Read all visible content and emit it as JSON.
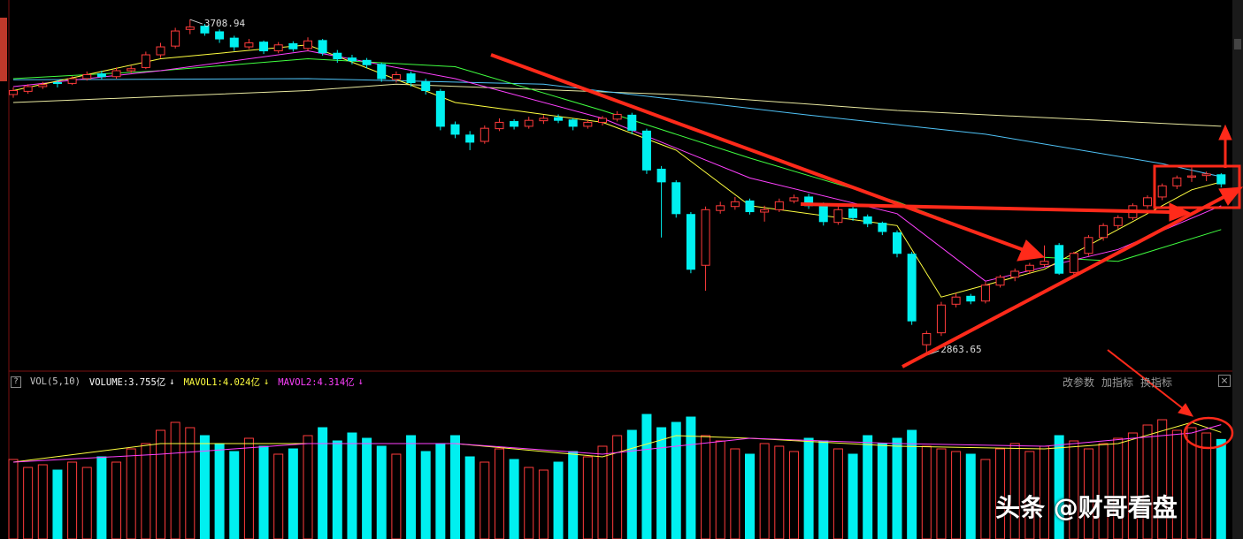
{
  "chart_data": [
    {
      "type": "candlestick",
      "up_color": "#ff3b3b",
      "down_color": "#00f0f0",
      "ylim": [
        2828,
        3758
      ],
      "candles": [
        [
          3520,
          3538,
          3512,
          3530
        ],
        [
          3528,
          3546,
          3522,
          3540
        ],
        [
          3540,
          3552,
          3534,
          3545
        ],
        [
          3550,
          3556,
          3538,
          3548
        ],
        [
          3548,
          3566,
          3544,
          3560
        ],
        [
          3560,
          3578,
          3555,
          3570
        ],
        [
          3572,
          3580,
          3558,
          3565
        ],
        [
          3565,
          3588,
          3560,
          3580
        ],
        [
          3580,
          3592,
          3574,
          3585
        ],
        [
          3588,
          3628,
          3584,
          3620
        ],
        [
          3620,
          3650,
          3612,
          3640
        ],
        [
          3642,
          3688,
          3636,
          3680
        ],
        [
          3684,
          3708.94,
          3672,
          3690
        ],
        [
          3692,
          3698,
          3668,
          3675
        ],
        [
          3678,
          3684,
          3650,
          3660
        ],
        [
          3662,
          3668,
          3630,
          3640
        ],
        [
          3640,
          3660,
          3634,
          3650
        ],
        [
          3652,
          3656,
          3622,
          3630
        ],
        [
          3630,
          3652,
          3624,
          3645
        ],
        [
          3648,
          3654,
          3628,
          3635
        ],
        [
          3636,
          3664,
          3630,
          3655
        ],
        [
          3656,
          3660,
          3618,
          3625
        ],
        [
          3624,
          3632,
          3600,
          3610
        ],
        [
          3612,
          3620,
          3596,
          3605
        ],
        [
          3606,
          3612,
          3586,
          3595
        ],
        [
          3596,
          3600,
          3552,
          3560
        ],
        [
          3558,
          3578,
          3550,
          3570
        ],
        [
          3572,
          3578,
          3540,
          3550
        ],
        [
          3552,
          3560,
          3520,
          3530
        ],
        [
          3528,
          3534,
          3430,
          3440
        ],
        [
          3444,
          3452,
          3410,
          3420
        ],
        [
          3418,
          3428,
          3380,
          3400
        ],
        [
          3402,
          3442,
          3396,
          3435
        ],
        [
          3434,
          3460,
          3428,
          3450
        ],
        [
          3452,
          3458,
          3432,
          3440
        ],
        [
          3440,
          3464,
          3434,
          3455
        ],
        [
          3454,
          3468,
          3446,
          3460
        ],
        [
          3462,
          3470,
          3448,
          3455
        ],
        [
          3456,
          3460,
          3430,
          3440
        ],
        [
          3440,
          3458,
          3434,
          3450
        ],
        [
          3450,
          3466,
          3442,
          3460
        ],
        [
          3458,
          3478,
          3452,
          3470
        ],
        [
          3468,
          3474,
          3420,
          3430
        ],
        [
          3428,
          3434,
          3320,
          3330
        ],
        [
          3332,
          3340,
          3160,
          3300
        ],
        [
          3298,
          3304,
          3210,
          3220
        ],
        [
          3218,
          3224,
          3070,
          3080
        ],
        [
          3090,
          3238,
          3026,
          3230
        ],
        [
          3228,
          3250,
          3220,
          3240
        ],
        [
          3238,
          3262,
          3230,
          3250
        ],
        [
          3252,
          3258,
          3218,
          3225
        ],
        [
          3224,
          3240,
          3200,
          3230
        ],
        [
          3230,
          3258,
          3224,
          3250
        ],
        [
          3252,
          3268,
          3246,
          3260
        ],
        [
          3262,
          3270,
          3232,
          3240
        ],
        [
          3242,
          3248,
          3190,
          3200
        ],
        [
          3198,
          3238,
          3192,
          3230
        ],
        [
          3232,
          3238,
          3202,
          3210
        ],
        [
          3212,
          3218,
          3186,
          3195
        ],
        [
          3196,
          3200,
          3166,
          3175
        ],
        [
          3172,
          3178,
          3110,
          3120
        ],
        [
          3118,
          3124,
          2940,
          2950
        ],
        [
          2890,
          2925,
          2863.65,
          2918
        ],
        [
          2920,
          2998,
          2912,
          2990
        ],
        [
          2992,
          3020,
          2984,
          3010
        ],
        [
          3012,
          3018,
          2992,
          3000
        ],
        [
          3000,
          3048,
          2994,
          3040
        ],
        [
          3040,
          3066,
          3034,
          3060
        ],
        [
          3060,
          3082,
          3050,
          3075
        ],
        [
          3076,
          3096,
          3068,
          3090
        ],
        [
          3092,
          3140,
          3086,
          3100
        ],
        [
          3140,
          3146,
          3066,
          3070
        ],
        [
          3072,
          3124,
          3066,
          3120
        ],
        [
          3120,
          3166,
          3114,
          3160
        ],
        [
          3160,
          3196,
          3152,
          3190
        ],
        [
          3190,
          3216,
          3182,
          3210
        ],
        [
          3210,
          3246,
          3204,
          3240
        ],
        [
          3240,
          3266,
          3232,
          3260
        ],
        [
          3262,
          3296,
          3254,
          3290
        ],
        [
          3290,
          3316,
          3282,
          3310
        ],
        [
          3312,
          3336,
          3300,
          3315
        ],
        [
          3316,
          3326,
          3302,
          3320
        ],
        [
          3318,
          3322,
          3286,
          3295
        ]
      ],
      "lines": [
        {
          "color": "#e8e8a0",
          "x": [
            0,
            20,
            26,
            45,
            60,
            82
          ],
          "values": [
            3500,
            3530,
            3546,
            3520,
            3480,
            3440
          ]
        },
        {
          "color": "#4fc3f7",
          "x": [
            0,
            20,
            36,
            54,
            66,
            78,
            82
          ],
          "values": [
            3557,
            3560,
            3546,
            3468,
            3420,
            3346,
            3313
          ]
        },
        {
          "color": "#40ff40",
          "x": [
            0,
            10,
            20,
            30,
            40,
            50,
            60,
            70,
            75,
            82
          ],
          "values": [
            3560,
            3580,
            3610,
            3590,
            3480,
            3360,
            3250,
            3110,
            3100,
            3180
          ]
        },
        {
          "color": "#ff40ff",
          "x": [
            0,
            10,
            20,
            30,
            40,
            50,
            60,
            66,
            75,
            82
          ],
          "values": [
            3540,
            3580,
            3630,
            3560,
            3460,
            3310,
            3220,
            3050,
            3130,
            3240
          ]
        },
        {
          "color": "#ffff40",
          "x": [
            0,
            10,
            20,
            30,
            40,
            45,
            50,
            60,
            63,
            70,
            80,
            82
          ],
          "values": [
            3530,
            3610,
            3645,
            3500,
            3450,
            3380,
            3240,
            3190,
            3010,
            3080,
            3280,
            3300
          ]
        }
      ]
    },
    {
      "type": "bar",
      "ylim": [
        0,
        5.5
      ],
      "values": [
        3.0,
        2.7,
        2.8,
        2.6,
        2.9,
        2.7,
        3.1,
        2.9,
        3.4,
        3.6,
        4.1,
        4.4,
        4.2,
        3.9,
        3.6,
        3.3,
        3.8,
        3.5,
        3.2,
        3.4,
        3.9,
        4.2,
        3.7,
        4.0,
        3.8,
        3.5,
        3.2,
        3.9,
        3.3,
        3.6,
        3.9,
        3.1,
        2.9,
        3.4,
        3.0,
        2.7,
        2.6,
        2.9,
        3.3,
        3.1,
        3.5,
        3.9,
        4.1,
        4.7,
        4.2,
        4.4,
        4.6,
        3.9,
        3.7,
        3.4,
        3.2,
        3.6,
        3.5,
        3.3,
        3.8,
        3.7,
        3.4,
        3.2,
        3.9,
        3.6,
        3.8,
        4.1,
        3.5,
        3.4,
        3.3,
        3.2,
        3.0,
        3.4,
        3.6,
        3.3,
        3.5,
        3.9,
        3.7,
        3.4,
        3.6,
        3.8,
        4.0,
        4.3,
        4.5,
        4.1,
        4.2,
        4.0,
        3.755
      ],
      "lines": [
        {
          "color": "#ffff40",
          "x": [
            0,
            10,
            20,
            30,
            40,
            45,
            50,
            60,
            70,
            75,
            80,
            82
          ],
          "values": [
            2.9,
            3.6,
            3.6,
            3.6,
            3.1,
            3.9,
            3.8,
            3.5,
            3.4,
            3.6,
            4.4,
            4.024
          ]
        },
        {
          "color": "#ff40ff",
          "x": [
            0,
            10,
            20,
            30,
            40,
            50,
            60,
            70,
            80,
            82
          ],
          "values": [
            2.9,
            3.2,
            3.6,
            3.6,
            3.2,
            3.8,
            3.6,
            3.5,
            4.0,
            4.314
          ]
        }
      ]
    }
  ],
  "volume_header": {
    "help": "?",
    "indicator": "VOL(5,10)",
    "items": [
      {
        "text": "VOLUME:3.755亿",
        "arrow": "↓",
        "color": "#ffffff"
      },
      {
        "text": "MAVOL1:4.024亿",
        "arrow": "↓",
        "color": "#ffff40"
      },
      {
        "text": "MAVOL2:4.314亿",
        "arrow": "↓",
        "color": "#ff40ff"
      }
    ]
  },
  "toolbar": [
    "改参数",
    "加指标",
    "换指标"
  ],
  "watermark": "头条 @财哥看盘"
}
